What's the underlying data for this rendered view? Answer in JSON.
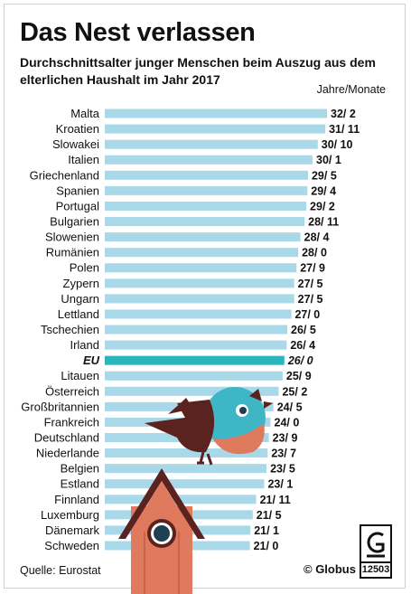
{
  "chart_data": {
    "type": "bar",
    "orientation": "horizontal",
    "title": "Das Nest verlassen",
    "subtitle": "Durchschnittsalter junger Menschen beim Auszug aus dem elterlichen Haushalt im Jahr 2017",
    "unit_label": "Jahre/Monate",
    "categories": [
      "Malta",
      "Kroatien",
      "Slowakei",
      "Italien",
      "Griechenland",
      "Spanien",
      "Portugal",
      "Bulgarien",
      "Slowenien",
      "Rumänien",
      "Polen",
      "Zypern",
      "Ungarn",
      "Lettland",
      "Tschechien",
      "Irland",
      "EU",
      "Litauen",
      "Österreich",
      "Großbritannien",
      "Frankreich",
      "Deutschland",
      "Niederlande",
      "Belgien",
      "Estland",
      "Finnland",
      "Luxemburg",
      "Dänemark",
      "Schweden"
    ],
    "value_labels": [
      "32/ 2",
      "31/ 11",
      "30/ 10",
      "30/ 1",
      "29/ 5",
      "29/ 4",
      "29/ 2",
      "28/ 11",
      "28/ 4",
      "28/ 0",
      "27/ 9",
      "27/ 5",
      "27/ 5",
      "27/ 0",
      "26/ 5",
      "26/ 4",
      "26/ 0",
      "25/ 9",
      "25/ 2",
      "24/ 5",
      "24/ 0",
      "23/ 9",
      "23/ 7",
      "23/ 5",
      "23/ 1",
      "21/ 11",
      "21/ 5",
      "21/ 1",
      "21/ 0"
    ],
    "values_years": [
      32.17,
      31.92,
      30.83,
      30.08,
      29.42,
      29.33,
      29.17,
      28.92,
      28.33,
      28.0,
      27.75,
      27.42,
      27.42,
      27.0,
      26.42,
      26.33,
      26.0,
      25.75,
      25.17,
      24.42,
      24.0,
      23.75,
      23.58,
      23.42,
      23.08,
      21.92,
      21.42,
      21.08,
      21.0
    ],
    "highlight_category": "EU",
    "colors": {
      "bar": "#a9d8e8",
      "highlight_bar": "#2bb5bd",
      "text": "#111111"
    }
  },
  "footer": {
    "source": "Quelle: Eurostat",
    "publisher": "© Globus",
    "graphic_number": "12503"
  },
  "icons": [
    "bird-illustration",
    "birdhouse-illustration",
    "globus-logo-icon"
  ]
}
